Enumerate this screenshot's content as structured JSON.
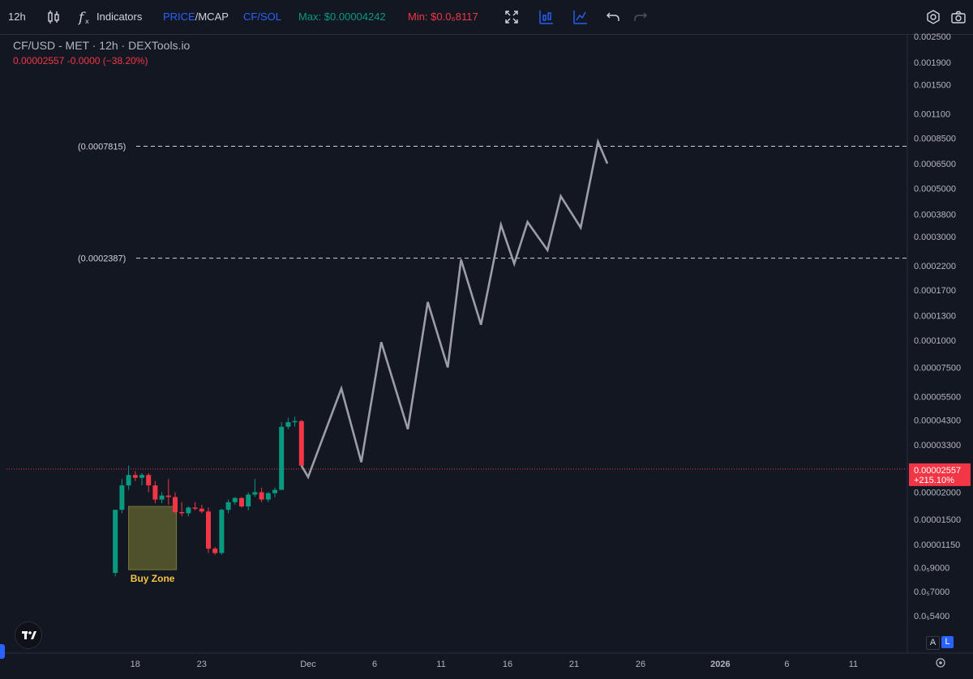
{
  "toolbar": {
    "interval": "12h",
    "indicators_label": "Indicators",
    "price_label": "PRICE",
    "mcap_label": "/MCAP",
    "pair_label": "CF/SOL",
    "max_label": "Max: $0.00004242",
    "min_label": "Min: $0.0₆8117",
    "icons": [
      "candles-icon",
      "fx-icon",
      "fullscreen-icon",
      "compare-icon",
      "indicator-chart-icon",
      "undo-icon",
      "redo-icon",
      "settings-icon",
      "camera-icon"
    ]
  },
  "header": {
    "title": "CF/USD - MET · 12h · DEXTools.io",
    "price_line": "0.00002557  -0.0000 (−38.20%)"
  },
  "colors": {
    "background": "#131722",
    "up": "#089981",
    "down": "#f23645",
    "projection": "#9b9ea7",
    "buy_zone": "#5a5a2e",
    "buy_zone_text": "#f5c542",
    "accent": "#2962ff"
  },
  "scale_buttons": {
    "auto": "A",
    "log": "L"
  },
  "chart_data": {
    "type": "candlestick",
    "title": "CF/USD - MET · 12h · DEXTools.io",
    "y_scale": "log",
    "ylim": [
      5.2e-07,
      0.0025
    ],
    "y_tick_labels": [
      "0.002500",
      "0.001900",
      "0.001500",
      "0.001100",
      "0.0008500",
      "0.0006500",
      "0.0005000",
      "0.0003800",
      "0.0003000",
      "0.0002200",
      "0.0001700",
      "0.0001300",
      "0.0001000",
      "0.00007500",
      "0.00005500",
      "0.00004300",
      "0.00003300",
      "0.00002000",
      "0.00001500",
      "0.00001150",
      "0.0₅9000",
      "0.0₅7000",
      "0.0₅5400"
    ],
    "y_tick_values": [
      0.0025,
      0.0019,
      0.0015,
      0.0011,
      0.00085,
      0.00065,
      0.0005,
      0.00038,
      0.0003,
      0.00022,
      0.00017,
      0.00013,
      0.0001,
      7.5e-05,
      5.5e-05,
      4.3e-05,
      3.3e-05,
      2e-05,
      1.5e-05,
      1.15e-05,
      9e-06,
      7e-06,
      5.4e-06
    ],
    "x_tick_labels": [
      "18",
      "23",
      "Dec",
      "6",
      "11",
      "16",
      "21",
      "26",
      "2026",
      "6",
      "11"
    ],
    "x_tick_days": [
      -13,
      -8,
      0,
      5,
      10,
      15,
      20,
      25,
      31,
      36,
      41
    ],
    "current_price": {
      "label": "0.00002557",
      "change": "+215.10%",
      "value": 2.557e-05
    },
    "levels": [
      {
        "label": "(0.0007815)",
        "value": 0.0007815
      },
      {
        "label": "(0.0002387)",
        "value": 0.0002387
      }
    ],
    "buy_zone": {
      "label": "Buy Zone",
      "day_start": -13.5,
      "day_end": -9.9,
      "low": 8.8e-06,
      "high": 1.72e-05
    },
    "candles": [
      {
        "d": -14.5,
        "o": 8.5e-06,
        "h": 1.66e-05,
        "l": 8.2e-06,
        "c": 1.66e-05
      },
      {
        "d": -14.0,
        "o": 1.66e-05,
        "h": 2.3e-05,
        "l": 1.6e-05,
        "c": 2.15e-05
      },
      {
        "d": -13.5,
        "o": 2.15e-05,
        "h": 2.65e-05,
        "l": 2.05e-05,
        "c": 2.4e-05
      },
      {
        "d": -13.0,
        "o": 2.4e-05,
        "h": 2.5e-05,
        "l": 2.25e-05,
        "c": 2.33e-05
      },
      {
        "d": -12.5,
        "o": 2.33e-05,
        "h": 2.45e-05,
        "l": 2.15e-05,
        "c": 2.4e-05
      },
      {
        "d": -12.0,
        "o": 2.4e-05,
        "h": 2.45e-05,
        "l": 2e-05,
        "c": 2.15e-05
      },
      {
        "d": -11.5,
        "o": 2.15e-05,
        "h": 2.25e-05,
        "l": 1.78e-05,
        "c": 1.85e-05
      },
      {
        "d": -11.0,
        "o": 1.85e-05,
        "h": 2e-05,
        "l": 1.78e-05,
        "c": 1.93e-05
      },
      {
        "d": -10.5,
        "o": 1.93e-05,
        "h": 2.3e-05,
        "l": 1.75e-05,
        "c": 1.9e-05
      },
      {
        "d": -10.0,
        "o": 1.9e-05,
        "h": 2e-05,
        "l": 1.6e-05,
        "c": 1.62e-05
      },
      {
        "d": -9.5,
        "o": 1.62e-05,
        "h": 1.8e-05,
        "l": 1.55e-05,
        "c": 1.6e-05
      },
      {
        "d": -9.0,
        "o": 1.6e-05,
        "h": 1.72e-05,
        "l": 1.55e-05,
        "c": 1.7e-05
      },
      {
        "d": -8.5,
        "o": 1.7e-05,
        "h": 1.8e-05,
        "l": 1.65e-05,
        "c": 1.68e-05
      },
      {
        "d": -8.0,
        "o": 1.68e-05,
        "h": 1.75e-05,
        "l": 1.6e-05,
        "c": 1.63e-05
      },
      {
        "d": -7.5,
        "o": 1.63e-05,
        "h": 1.7e-05,
        "l": 1.05e-05,
        "c": 1.1e-05
      },
      {
        "d": -7.0,
        "o": 1.1e-05,
        "h": 1.12e-05,
        "l": 1.03e-05,
        "c": 1.05e-05
      },
      {
        "d": -6.5,
        "o": 1.05e-05,
        "h": 1.68e-05,
        "l": 1.03e-05,
        "c": 1.66e-05
      },
      {
        "d": -6.0,
        "o": 1.66e-05,
        "h": 1.85e-05,
        "l": 1.6e-05,
        "c": 1.8e-05
      },
      {
        "d": -5.5,
        "o": 1.8e-05,
        "h": 1.9e-05,
        "l": 1.75e-05,
        "c": 1.88e-05
      },
      {
        "d": -5.0,
        "o": 1.88e-05,
        "h": 1.9e-05,
        "l": 1.7e-05,
        "c": 1.72e-05
      },
      {
        "d": -4.5,
        "o": 1.72e-05,
        "h": 2e-05,
        "l": 1.65e-05,
        "c": 1.95e-05
      },
      {
        "d": -4.0,
        "o": 1.95e-05,
        "h": 2.3e-05,
        "l": 1.9e-05,
        "c": 2e-05
      },
      {
        "d": -3.5,
        "o": 2e-05,
        "h": 2.1e-05,
        "l": 1.8e-05,
        "c": 1.85e-05
      },
      {
        "d": -3.0,
        "o": 1.85e-05,
        "h": 2e-05,
        "l": 1.8e-05,
        "c": 1.98e-05
      },
      {
        "d": -2.5,
        "o": 1.98e-05,
        "h": 2.1e-05,
        "l": 1.9e-05,
        "c": 2.05e-05
      },
      {
        "d": -2.0,
        "o": 2.05e-05,
        "h": 4.2e-05,
        "l": 2.05e-05,
        "c": 4e-05
      },
      {
        "d": -1.5,
        "o": 4e-05,
        "h": 4.4e-05,
        "l": 3.9e-05,
        "c": 4.2e-05
      },
      {
        "d": -1.0,
        "o": 4.2e-05,
        "h": 4.45e-05,
        "l": 4e-05,
        "c": 4.25e-05
      },
      {
        "d": -0.5,
        "o": 4.25e-05,
        "h": 4.3e-05,
        "l": 2.6e-05,
        "c": 2.65e-05
      }
    ],
    "projection": [
      {
        "d": -0.5,
        "v": 2.65e-05
      },
      {
        "d": 0.0,
        "v": 2.35e-05
      },
      {
        "d": 2.5,
        "v": 6e-05
      },
      {
        "d": 4.0,
        "v": 2.75e-05
      },
      {
        "d": 5.5,
        "v": 9.8e-05
      },
      {
        "d": 7.5,
        "v": 3.9e-05
      },
      {
        "d": 9.0,
        "v": 0.00015
      },
      {
        "d": 10.5,
        "v": 7.5e-05
      },
      {
        "d": 11.5,
        "v": 0.000235
      },
      {
        "d": 13.0,
        "v": 0.000118
      },
      {
        "d": 14.5,
        "v": 0.00034
      },
      {
        "d": 15.5,
        "v": 0.000225
      },
      {
        "d": 16.5,
        "v": 0.00035
      },
      {
        "d": 18.0,
        "v": 0.00026
      },
      {
        "d": 19.0,
        "v": 0.00046
      },
      {
        "d": 20.5,
        "v": 0.00033
      },
      {
        "d": 21.8,
        "v": 0.00082
      },
      {
        "d": 22.5,
        "v": 0.00065
      }
    ]
  }
}
